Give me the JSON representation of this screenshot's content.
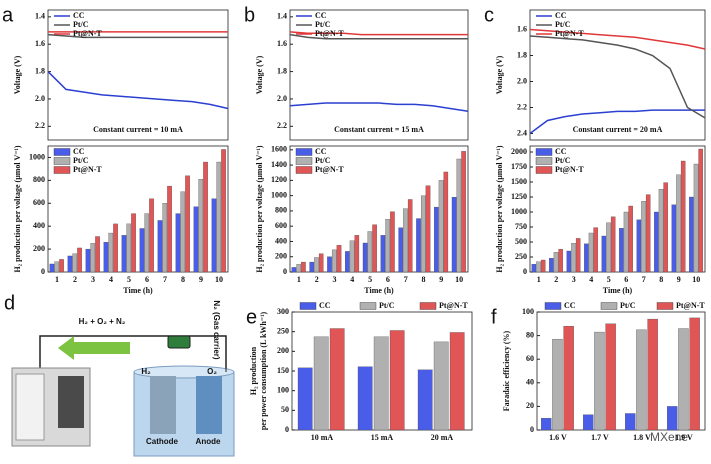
{
  "chart_data": [
    {
      "panel": "a",
      "type": "line",
      "ylabel": "Voltage (V)",
      "annotation": "Constant current = 10 mA",
      "x": [
        0,
        1,
        2,
        3,
        4,
        5,
        6,
        7,
        8,
        9,
        10
      ],
      "xlim": [
        0,
        10
      ],
      "ylim": [
        2.3,
        1.35
      ],
      "yticks": [
        1.4,
        1.6,
        1.8,
        {
          "value": 2,
          "label": "2.0"
        },
        2.2
      ],
      "legend": "top-left",
      "series": [
        {
          "name": "CC",
          "color": "#2b3fd1",
          "values": [
            1.8,
            1.93,
            1.95,
            1.97,
            1.98,
            1.99,
            2.0,
            2.01,
            2.02,
            2.04,
            2.07
          ]
        },
        {
          "name": "Pt/C",
          "color": "#555555",
          "values": [
            1.53,
            1.54,
            1.55,
            1.55,
            1.55,
            1.55,
            1.55,
            1.55,
            1.55,
            1.55,
            1.55
          ]
        },
        {
          "name": "Pt@N-T",
          "color": "#e0383a",
          "values": [
            1.51,
            1.51,
            1.51,
            1.51,
            1.51,
            1.51,
            1.51,
            1.51,
            1.51,
            1.51,
            1.51
          ]
        }
      ]
    },
    {
      "type": "bar",
      "xlabel": "Time (h)",
      "ylabel": "H₂ production per voltage (μmol V⁻¹)",
      "categories": [
        "1",
        "2",
        "3",
        "4",
        "5",
        "6",
        "7",
        "8",
        "9",
        "10"
      ],
      "ylim": [
        0,
        1100
      ],
      "yticks": [
        0,
        200,
        400,
        600,
        800,
        1000
      ],
      "legend": "top-left",
      "series": [
        {
          "name": "CC",
          "color": "#4a5de8",
          "values": [
            70,
            140,
            200,
            260,
            320,
            380,
            450,
            510,
            570,
            640
          ]
        },
        {
          "name": "Pt/C",
          "color": "#b0b0b0",
          "values": [
            90,
            160,
            250,
            340,
            420,
            510,
            600,
            700,
            810,
            960
          ]
        },
        {
          "name": "Pt@N-T",
          "color": "#e05555",
          "values": [
            110,
            210,
            310,
            420,
            510,
            640,
            750,
            840,
            960,
            1070
          ]
        }
      ]
    },
    {
      "panel": "b",
      "type": "line",
      "ylabel": "Voltage (V)",
      "annotation": "Constant current = 15 mA",
      "x": [
        0,
        1,
        2,
        3,
        4,
        5,
        6,
        7,
        8,
        9,
        10
      ],
      "xlim": [
        0,
        10
      ],
      "ylim": [
        2.3,
        1.35
      ],
      "yticks": [
        1.4,
        1.6,
        1.8,
        {
          "value": 2,
          "label": "2.0"
        },
        2.2
      ],
      "legend": "top-left",
      "series": [
        {
          "name": "CC",
          "color": "#2b3fd1",
          "values": [
            2.05,
            2.04,
            2.03,
            2.03,
            2.03,
            2.03,
            2.04,
            2.04,
            2.05,
            2.07,
            2.09
          ]
        },
        {
          "name": "Pt/C",
          "color": "#555555",
          "values": [
            1.53,
            1.55,
            1.56,
            1.56,
            1.56,
            1.56,
            1.56,
            1.56,
            1.56,
            1.56,
            1.56
          ]
        },
        {
          "name": "Pt@N-T",
          "color": "#e0383a",
          "values": [
            1.51,
            1.52,
            1.52,
            1.52,
            1.53,
            1.53,
            1.53,
            1.53,
            1.53,
            1.53,
            1.53
          ]
        }
      ]
    },
    {
      "type": "bar",
      "xlabel": "Time (h)",
      "ylabel": "H₂ production per voltage (μmol V⁻¹)",
      "categories": [
        "1",
        "2",
        "3",
        "4",
        "5",
        "6",
        "7",
        "8",
        "9",
        "10"
      ],
      "ylim": [
        0,
        1650
      ],
      "yticks": [
        0,
        200,
        400,
        600,
        800,
        1000,
        1200,
        1400,
        1600
      ],
      "legend": "top-left",
      "series": [
        {
          "name": "CC",
          "color": "#4a5de8",
          "values": [
            60,
            130,
            200,
            270,
            380,
            480,
            580,
            700,
            850,
            980
          ]
        },
        {
          "name": "Pt/C",
          "color": "#b0b0b0",
          "values": [
            100,
            190,
            290,
            410,
            530,
            690,
            830,
            1000,
            1200,
            1480
          ]
        },
        {
          "name": "Pt@N-T",
          "color": "#e05555",
          "values": [
            130,
            240,
            350,
            480,
            620,
            790,
            950,
            1130,
            1310,
            1580
          ]
        }
      ]
    },
    {
      "panel": "c",
      "type": "line",
      "ylabel": "Voltage (V)",
      "annotation": "Constant current = 20 mA",
      "x": [
        0,
        1,
        2,
        3,
        4,
        5,
        6,
        7,
        8,
        9,
        10
      ],
      "xlim": [
        0,
        10
      ],
      "ylim": [
        2.45,
        1.45
      ],
      "yticks": [
        1.6,
        1.8,
        {
          "value": 2,
          "label": "2.0"
        },
        2.2,
        2.4
      ],
      "legend": "top-left",
      "series": [
        {
          "name": "CC",
          "color": "#2b3fd1",
          "values": [
            2.4,
            2.3,
            2.27,
            2.25,
            2.24,
            2.23,
            2.23,
            2.22,
            2.22,
            2.22,
            2.22
          ]
        },
        {
          "name": "Pt/C",
          "color": "#555555",
          "values": [
            1.65,
            1.66,
            1.67,
            1.68,
            1.7,
            1.72,
            1.75,
            1.8,
            1.9,
            2.2,
            2.28
          ]
        },
        {
          "name": "Pt@N-T",
          "color": "#e0383a",
          "values": [
            1.6,
            1.61,
            1.62,
            1.63,
            1.64,
            1.65,
            1.66,
            1.68,
            1.7,
            1.72,
            1.75
          ]
        }
      ]
    },
    {
      "type": "bar",
      "xlabel": "Time (h)",
      "ylabel": "H₂ production per voltage (μmol V⁻¹)",
      "categories": [
        "1",
        "2",
        "3",
        "4",
        "5",
        "6",
        "7",
        "8",
        "9",
        "10"
      ],
      "ylim": [
        0,
        2100
      ],
      "yticks": [
        0,
        250,
        500,
        750,
        1000,
        1250,
        1500,
        1750,
        2000
      ],
      "legend": "top-left",
      "series": [
        {
          "name": "CC",
          "color": "#4a5de8",
          "values": [
            130,
            230,
            350,
            470,
            600,
            730,
            870,
            1000,
            1120,
            1250
          ]
        },
        {
          "name": "Pt/C",
          "color": "#b0b0b0",
          "values": [
            170,
            330,
            480,
            650,
            820,
            1000,
            1180,
            1380,
            1620,
            1800
          ]
        },
        {
          "name": "Pt@N-T",
          "color": "#e05555",
          "values": [
            200,
            380,
            560,
            740,
            920,
            1100,
            1290,
            1490,
            1850,
            2050
          ]
        }
      ]
    },
    {
      "panel": "e",
      "type": "bar",
      "ylabel": [
        "H₂ production",
        "per power consumption (L kWh⁻¹)"
      ],
      "categories": [
        "10 mA",
        "15 mA",
        "20 mA"
      ],
      "ylim": [
        0,
        300
      ],
      "yticks": [
        0,
        50,
        100,
        150,
        200,
        250,
        300
      ],
      "legend": "top",
      "series": [
        {
          "name": "CC",
          "color": "#4a5de8",
          "values": [
            158,
            161,
            153
          ]
        },
        {
          "name": "Pt/C",
          "color": "#b0b0b0",
          "values": [
            237,
            237,
            224
          ]
        },
        {
          "name": "Pt@N-T",
          "color": "#e05555",
          "values": [
            258,
            253,
            248
          ]
        }
      ]
    },
    {
      "panel": "f",
      "type": "bar",
      "ylabel": "Faradaic efficiency (%)",
      "categories": [
        "1.6 V",
        "1.7 V",
        "1.8 V",
        "1.9 V"
      ],
      "ylim": [
        0,
        100
      ],
      "yticks": [
        0,
        20,
        40,
        60,
        80,
        100
      ],
      "legend": "top",
      "series": [
        {
          "name": "CC",
          "color": "#4a5de8",
          "values": [
            10,
            13,
            14,
            20
          ]
        },
        {
          "name": "Pt/C",
          "color": "#b0b0b0",
          "values": [
            77,
            83,
            85,
            86
          ]
        },
        {
          "name": "Pt@N-T",
          "color": "#e05555",
          "values": [
            88,
            90,
            94,
            95
          ]
        }
      ]
    }
  ],
  "diagram": {
    "panel": "d",
    "gas_label": "H₂ + O₂ + N₂",
    "carrier_label": "N₂ (Gas carrier)",
    "cathode_gas": "H₂",
    "anode_gas": "O₂",
    "cathode": "Cathode",
    "anode": "Anode"
  },
  "watermark": "MXene"
}
